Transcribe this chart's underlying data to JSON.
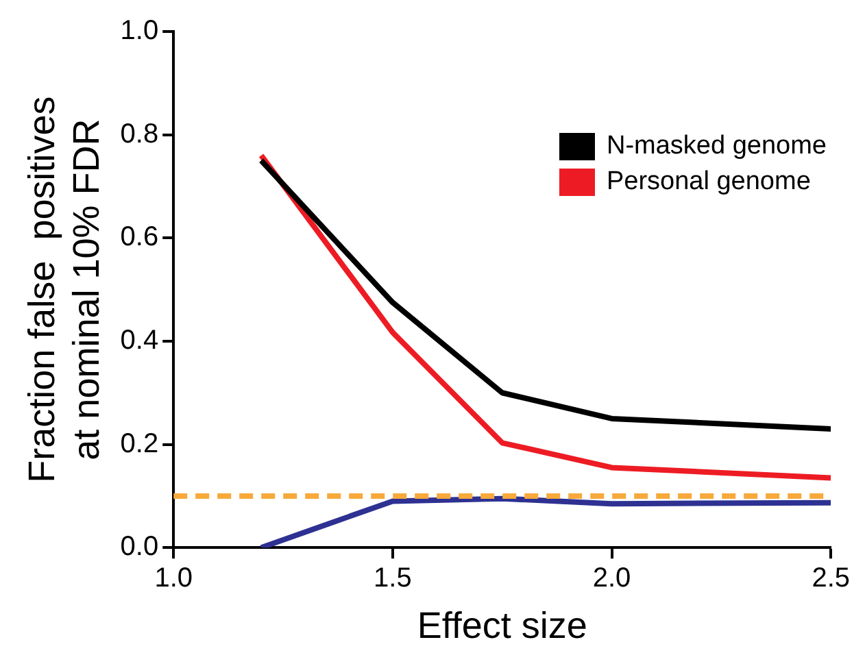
{
  "chart_data": {
    "type": "line",
    "xlabel": "Effect size",
    "ylabel": "Fraction false  positives\nat nominal 10% FDR",
    "x": [
      1.2,
      1.5,
      1.75,
      2.0,
      2.5
    ],
    "series": [
      {
        "name": "N-masked genome",
        "color": "#000000",
        "values": [
          0.75,
          0.475,
          0.3,
          0.25,
          0.23
        ]
      },
      {
        "name": "Personal genome",
        "color": "#ed1c24",
        "values": [
          0.76,
          0.417,
          0.203,
          0.155,
          0.135
        ]
      },
      {
        "color": "#2e3192",
        "values": [
          0.0,
          0.09,
          0.095,
          0.085,
          0.087
        ]
      }
    ],
    "xlim": [
      1.0,
      2.5
    ],
    "xticks": [
      {
        "value": 1,
        "label": "1.0"
      },
      1.5,
      {
        "value": 2,
        "label": "2.0"
      },
      2.5
    ],
    "ylim": [
      0,
      1
    ],
    "yticks": [
      {
        "value": 0,
        "label": "0.0"
      },
      0.2,
      0.4,
      0.6,
      0.8,
      {
        "value": 1,
        "label": "1.0"
      }
    ],
    "ref_lines": [
      {
        "axis": "y",
        "value": 0.1,
        "color": "#f7a93b",
        "line_style": "dashed"
      }
    ],
    "grid": false,
    "legend": "top right",
    "marker": "none",
    "line_style": "solid"
  }
}
